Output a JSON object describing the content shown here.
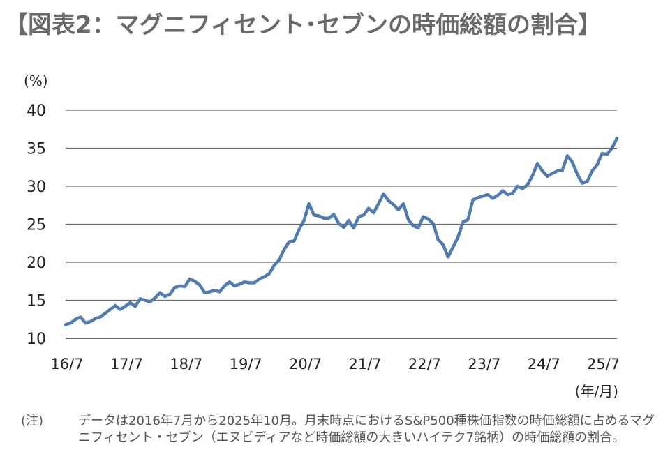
{
  "title": "【図表2：マグニフィセント･セブンの時価総額の割合】",
  "chart_data": {
    "type": "line",
    "ylabel": "(%)",
    "xlabel": "(年/月)",
    "ylim": [
      10,
      40
    ],
    "yticks": [
      10,
      15,
      20,
      25,
      30,
      35,
      40
    ],
    "grid": true,
    "legend": "none",
    "line_color": "#4f7cb5",
    "x_tick_labels": [
      "16/7",
      "17/7",
      "18/7",
      "19/7",
      "20/7",
      "21/7",
      "22/7",
      "23/7",
      "24/7",
      "25/7"
    ],
    "x_tick_months": [
      0,
      12,
      24,
      36,
      48,
      60,
      72,
      84,
      96,
      108
    ],
    "series": [
      {
        "values": [
          11.8,
          12.0,
          12.5,
          12.8,
          12.0,
          12.2,
          12.6,
          12.8,
          13.3,
          13.8,
          14.3,
          13.8,
          14.2,
          14.7,
          14.2,
          15.2,
          15.0,
          14.8,
          15.3,
          16.0,
          15.5,
          15.8,
          16.7,
          16.9,
          16.8,
          17.8,
          17.5,
          17.0,
          16.0,
          16.1,
          16.3,
          16.1,
          16.9,
          17.4,
          16.9,
          17.1,
          17.4,
          17.3,
          17.3,
          17.8,
          18.1,
          18.5,
          19.6,
          20.3,
          21.7,
          22.7,
          22.8,
          24.3,
          25.5,
          27.7,
          26.2,
          26.1,
          25.8,
          25.8,
          26.3,
          25.1,
          24.6,
          25.5,
          24.5,
          26.0,
          26.2,
          27.1,
          26.5,
          27.7,
          29.0,
          28.1,
          27.6,
          26.9,
          27.7,
          25.6,
          24.8,
          24.5,
          26.0,
          25.7,
          25.1,
          23.0,
          22.3,
          20.7,
          22.0,
          23.3,
          25.3,
          25.6,
          28.2,
          28.5,
          28.7,
          28.9,
          28.4,
          28.8,
          29.4,
          28.9,
          29.1,
          30.0,
          29.7,
          30.2,
          31.4,
          33.0,
          32.0,
          31.3,
          31.7,
          32.0,
          32.1,
          34.0,
          33.2,
          31.6,
          30.4,
          30.6,
          32.0,
          32.8,
          34.3,
          34.2,
          35.0,
          36.3
        ]
      }
    ]
  },
  "note": {
    "label": "(注)",
    "text": "データは2016年7月から2025年10月。月末時点におけるS&P500種株価指数の時価総額に占めるマグニフィセント・セブン（エヌビディアなど時価総額の大きいハイテク7銘柄）の時価総額の割合。"
  }
}
